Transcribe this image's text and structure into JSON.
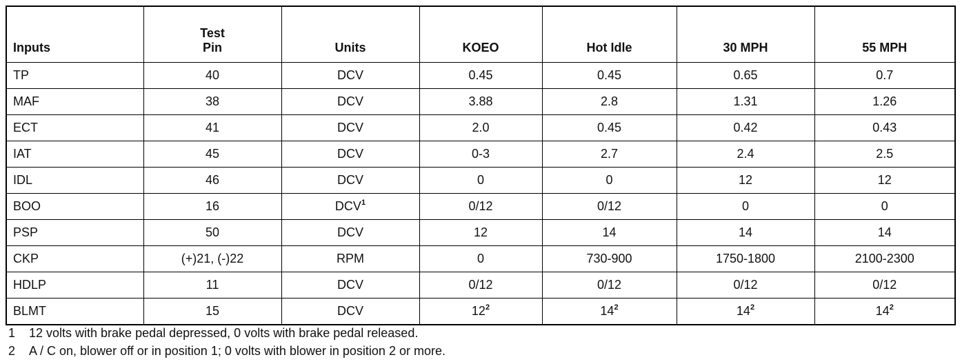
{
  "table": {
    "headers": [
      [
        "Inputs"
      ],
      [
        "Test",
        "Pin"
      ],
      [
        "Units"
      ],
      [
        "KOEO"
      ],
      [
        "Hot Idle"
      ],
      [
        "30 MPH"
      ],
      [
        "55 MPH"
      ]
    ],
    "rows": [
      [
        "TP",
        "40",
        "DCV",
        "0.45",
        "0.45",
        "0.65",
        "0.7"
      ],
      [
        "MAF",
        "38",
        "DCV",
        "3.88",
        "2.8",
        "1.31",
        "1.26"
      ],
      [
        "ECT",
        "41",
        "DCV",
        "2.0",
        "0.45",
        "0.42",
        "0.43"
      ],
      [
        "IAT",
        "45",
        "DCV",
        "0-3",
        "2.7",
        "2.4",
        "2.5"
      ],
      [
        "IDL",
        "46",
        "DCV",
        "0",
        "0",
        "12",
        "12"
      ],
      [
        "BOO",
        "16",
        {
          "text": "DCV",
          "sup": "1"
        },
        "0/12",
        "0/12",
        "0",
        "0"
      ],
      [
        "PSP",
        "50",
        "DCV",
        "12",
        "14",
        "14",
        "14"
      ],
      [
        "CKP",
        "(+)21, (-)22",
        "RPM",
        "0",
        "730-900",
        "1750-1800",
        "2100-2300"
      ],
      [
        "HDLP",
        "11",
        "DCV",
        "0/12",
        "0/12",
        "0/12",
        "0/12"
      ],
      [
        "BLMT",
        "15",
        "DCV",
        {
          "text": "12",
          "sup": "2"
        },
        {
          "text": "14",
          "sup": "2"
        },
        {
          "text": "14",
          "sup": "2"
        },
        {
          "text": "14",
          "sup": "2"
        }
      ]
    ]
  },
  "footnotes": [
    {
      "marker": "1",
      "text": "12 volts with brake pedal depressed, 0 volts with brake pedal released."
    },
    {
      "marker": "2",
      "text": "A / C on, blower off or in position 1; 0 volts with blower in position 2 or more."
    }
  ]
}
